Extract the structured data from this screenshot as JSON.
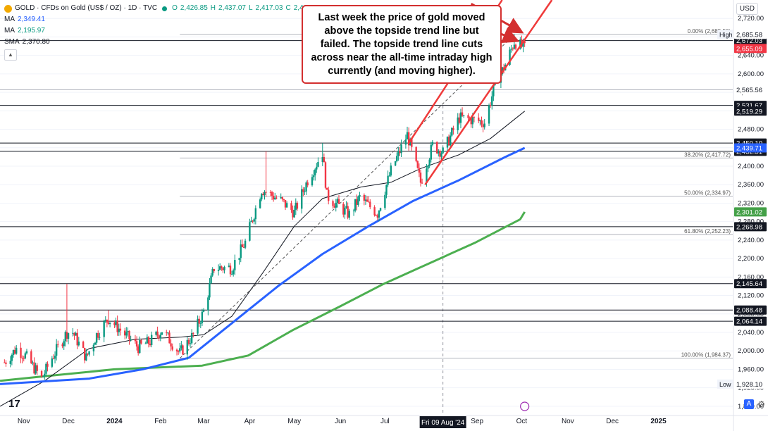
{
  "legend": {
    "symbol": "GOLD · CFDs on Gold (US$ / OZ) · 1D · TVC",
    "open": "2,426.85",
    "high": "2,437.07",
    "low": "2,417.03",
    "close": "2,430.87",
    "ma1_label": "MA",
    "ma1_value": "2,349.41",
    "ma2_label": "MA",
    "ma2_value": "2,195.97",
    "sma_label": "SMA",
    "sma_value": "2,370.80"
  },
  "callout": "Last week the price of gold moved above the topside trend line but failed.  The topside trend line cuts across near the all-time intraday high currently (and moving higher).",
  "currency": "USD",
  "logo": "17",
  "scale_button": "A",
  "colors": {
    "up": "#089981",
    "down": "#f23645",
    "ma_blue": "#2962ff",
    "ma_green": "#4caf50",
    "trend_red": "#ef3a3a",
    "annotation_red": "#d32f2f"
  },
  "chart_data": {
    "type": "candlestick",
    "x_range": [
      "2023-10-16",
      "2025-02-20"
    ],
    "y_range": [
      1860,
      2760
    ],
    "y_ticks": [
      1880,
      1920,
      1960,
      2000,
      2040,
      2080,
      2120,
      2160,
      2200,
      2240,
      2280,
      2320,
      2360,
      2400,
      2440,
      2480,
      2520,
      2560,
      2600,
      2640,
      2680,
      2720
    ],
    "x_labels": [
      "Nov",
      "Dec",
      "2024",
      "Feb",
      "Mar",
      "Apr",
      "May",
      "Jun",
      "Jul",
      "Aug",
      "Sep",
      "Oct",
      "Nov",
      "Dec",
      "2025"
    ],
    "crosshair_label": "Fri 09 Aug '24",
    "crosshair_date": "2024-08-09",
    "price_path": [
      [
        "2023-10-19",
        1975
      ],
      [
        "2023-10-27",
        2005
      ],
      [
        "2023-11-02",
        1990
      ],
      [
        "2023-11-13",
        1940
      ],
      [
        "2023-11-20",
        1985
      ],
      [
        "2023-11-30",
        2040
      ],
      [
        "2023-12-04",
        2040
      ],
      [
        "2023-12-13",
        1985
      ],
      [
        "2023-12-20",
        2035
      ],
      [
        "2023-12-28",
        2070
      ],
      [
        "2024-01-05",
        2045
      ],
      [
        "2024-01-17",
        2008
      ],
      [
        "2024-01-25",
        2020
      ],
      [
        "2024-02-02",
        2045
      ],
      [
        "2024-02-14",
        1995
      ],
      [
        "2024-02-23",
        2035
      ],
      [
        "2024-03-01",
        2085
      ],
      [
        "2024-03-08",
        2180
      ],
      [
        "2024-03-20",
        2180
      ],
      [
        "2024-03-29",
        2235
      ],
      [
        "2024-04-09",
        2350
      ],
      [
        "2024-04-12",
        2345
      ],
      [
        "2024-04-22",
        2325
      ],
      [
        "2024-05-01",
        2300
      ],
      [
        "2024-05-10",
        2370
      ],
      [
        "2024-05-20",
        2430
      ],
      [
        "2024-05-23",
        2335
      ],
      [
        "2024-06-07",
        2295
      ],
      [
        "2024-06-14",
        2332
      ],
      [
        "2024-06-26",
        2298
      ],
      [
        "2024-07-05",
        2390
      ],
      [
        "2024-07-16",
        2468
      ],
      [
        "2024-07-25",
        2365
      ],
      [
        "2024-08-02",
        2445
      ],
      [
        "2024-08-09",
        2430
      ],
      [
        "2024-08-20",
        2505
      ],
      [
        "2024-08-30",
        2500
      ],
      [
        "2024-09-06",
        2495
      ],
      [
        "2024-09-13",
        2575
      ],
      [
        "2024-09-20",
        2620
      ],
      [
        "2024-09-26",
        2670
      ],
      [
        "2024-10-03",
        2655
      ]
    ],
    "spike_highs": [
      [
        "2023-11-30",
        2145
      ],
      [
        "2023-12-28",
        2088
      ],
      [
        "2024-04-12",
        2432
      ],
      [
        "2024-05-20",
        2450
      ],
      [
        "2024-07-17",
        2484
      ],
      [
        "2024-09-26",
        2685.58
      ]
    ],
    "ma_blue": [
      [
        "2023-10-16",
        1928
      ],
      [
        "2023-12-15",
        1940
      ],
      [
        "2024-01-20",
        1960
      ],
      [
        "2024-02-20",
        1985
      ],
      [
        "2024-03-20",
        2060
      ],
      [
        "2024-04-20",
        2140
      ],
      [
        "2024-05-20",
        2210
      ],
      [
        "2024-06-20",
        2270
      ],
      [
        "2024-07-20",
        2325
      ],
      [
        "2024-08-20",
        2370
      ],
      [
        "2024-09-20",
        2420
      ],
      [
        "2024-10-03",
        2439.71
      ]
    ],
    "ma_green": [
      [
        "2023-10-16",
        1935
      ],
      [
        "2023-11-15",
        1945
      ],
      [
        "2024-01-01",
        1960
      ],
      [
        "2024-02-29",
        1968
      ],
      [
        "2024-03-31",
        1990
      ],
      [
        "2024-04-30",
        2045
      ],
      [
        "2024-05-31",
        2095
      ],
      [
        "2024-06-30",
        2145
      ],
      [
        "2024-07-31",
        2190
      ],
      [
        "2024-08-31",
        2235
      ],
      [
        "2024-09-30",
        2285
      ],
      [
        "2024-10-03",
        2301.02
      ]
    ],
    "sma_black": [
      [
        "2023-10-16",
        1880
      ],
      [
        "2023-11-15",
        1935
      ],
      [
        "2023-12-15",
        2005
      ],
      [
        "2024-01-15",
        2025
      ],
      [
        "2024-02-15",
        2030
      ],
      [
        "2024-03-01",
        2035
      ],
      [
        "2024-03-20",
        2075
      ],
      [
        "2024-04-10",
        2170
      ],
      [
        "2024-05-01",
        2270
      ],
      [
        "2024-05-20",
        2330
      ],
      [
        "2024-06-15",
        2355
      ],
      [
        "2024-07-05",
        2365
      ],
      [
        "2024-07-25",
        2395
      ],
      [
        "2024-08-20",
        2425
      ],
      [
        "2024-09-10",
        2460
      ],
      [
        "2024-10-03",
        2519.29
      ]
    ],
    "horizontal_levels": [
      {
        "price": 2672.03,
        "label": "2,672.03",
        "style": "dark"
      },
      {
        "price": 2565.56,
        "label": "2,565.56",
        "style": "light"
      },
      {
        "price": 2531.67,
        "label": "2,531.67",
        "style": "dark"
      },
      {
        "price": 2450.1,
        "label": "2,450.10",
        "style": "dark"
      },
      {
        "price": 2432.31,
        "label": "2,432.31",
        "style": "dark"
      },
      {
        "price": 2268.98,
        "label": "2,268.98",
        "style": "dark"
      },
      {
        "price": 2145.64,
        "label": "2,145.64",
        "style": "dark"
      },
      {
        "price": 2088.48,
        "label": "2,088.48",
        "style": "dark"
      },
      {
        "price": 2064.14,
        "label": "2,064.14",
        "style": "dark"
      }
    ],
    "price_labels": [
      {
        "price": 2685.58,
        "label": "2,685.58",
        "prefix": "High",
        "style": "plain"
      },
      {
        "price": 2655.09,
        "label": "2,655.09",
        "style": "red"
      },
      {
        "price": 2519.29,
        "label": "2,519.29",
        "style": "dark"
      },
      {
        "price": 2439.71,
        "label": "2,439.71",
        "style": "blue"
      },
      {
        "price": 2301.02,
        "label": "2,301.02",
        "style": "green"
      },
      {
        "price": 1928.1,
        "label": "1,928.10",
        "prefix": "Low",
        "style": "plain"
      }
    ],
    "fib_levels": [
      {
        "price": 2685.58,
        "label": "0.00% (2,685.58)"
      },
      {
        "price": 2417.72,
        "label": "38.20% (2,417.72)"
      },
      {
        "price": 2334.97,
        "label": "50.00% (2,334.97)"
      },
      {
        "price": 2252.23,
        "label": "61.80% (2,252.23)"
      },
      {
        "price": 1984.37,
        "label": "100.00% (1,984.37)"
      }
    ],
    "fib_start": "2024-02-14",
    "trend_upper": {
      "from": [
        "2024-07-17",
        2450
      ],
      "to": [
        "2024-12-20",
        3220
      ]
    },
    "trend_lower": {
      "from": [
        "2024-07-28",
        2360
      ],
      "to": [
        "2024-12-20",
        3040
      ]
    },
    "dashed_trend": {
      "from": [
        "2024-02-14",
        1984
      ],
      "to": [
        "2024-09-26",
        2685
      ]
    },
    "arrows": [
      {
        "from": [
          "2024-08-28",
          2752
        ],
        "to": [
          "2024-09-30",
          2692
        ]
      },
      {
        "from": [
          "2024-08-25",
          2718
        ],
        "to": [
          "2024-09-27",
          2673
        ]
      }
    ]
  }
}
